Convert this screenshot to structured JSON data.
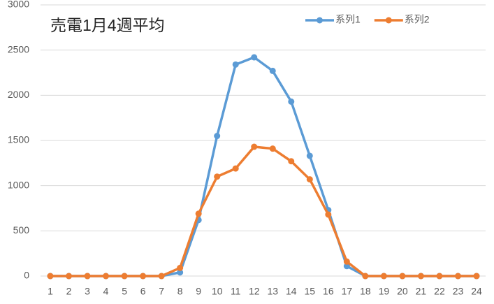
{
  "chart_data": {
    "type": "line",
    "title": "売電1月4週平均",
    "categories": [
      1,
      2,
      3,
      4,
      5,
      6,
      7,
      8,
      9,
      10,
      11,
      12,
      13,
      14,
      15,
      16,
      17,
      18,
      19,
      20,
      21,
      22,
      23,
      24
    ],
    "series": [
      {
        "name": "系列1",
        "color": "#5b9bd5",
        "values": [
          0,
          0,
          0,
          0,
          0,
          0,
          0,
          40,
          620,
          1550,
          2340,
          2420,
          2270,
          1930,
          1330,
          730,
          110,
          0,
          0,
          0,
          0,
          0,
          0,
          0
        ]
      },
      {
        "name": "系列2",
        "color": "#ed7d31",
        "values": [
          0,
          0,
          0,
          0,
          0,
          0,
          0,
          90,
          690,
          1100,
          1190,
          1430,
          1410,
          1270,
          1070,
          680,
          160,
          0,
          0,
          0,
          0,
          0,
          0,
          0
        ]
      }
    ],
    "ylim": [
      0,
      3000
    ],
    "yticks": [
      0,
      500,
      1000,
      1500,
      2000,
      2500,
      3000
    ],
    "grid": true,
    "legend": "top-right"
  }
}
